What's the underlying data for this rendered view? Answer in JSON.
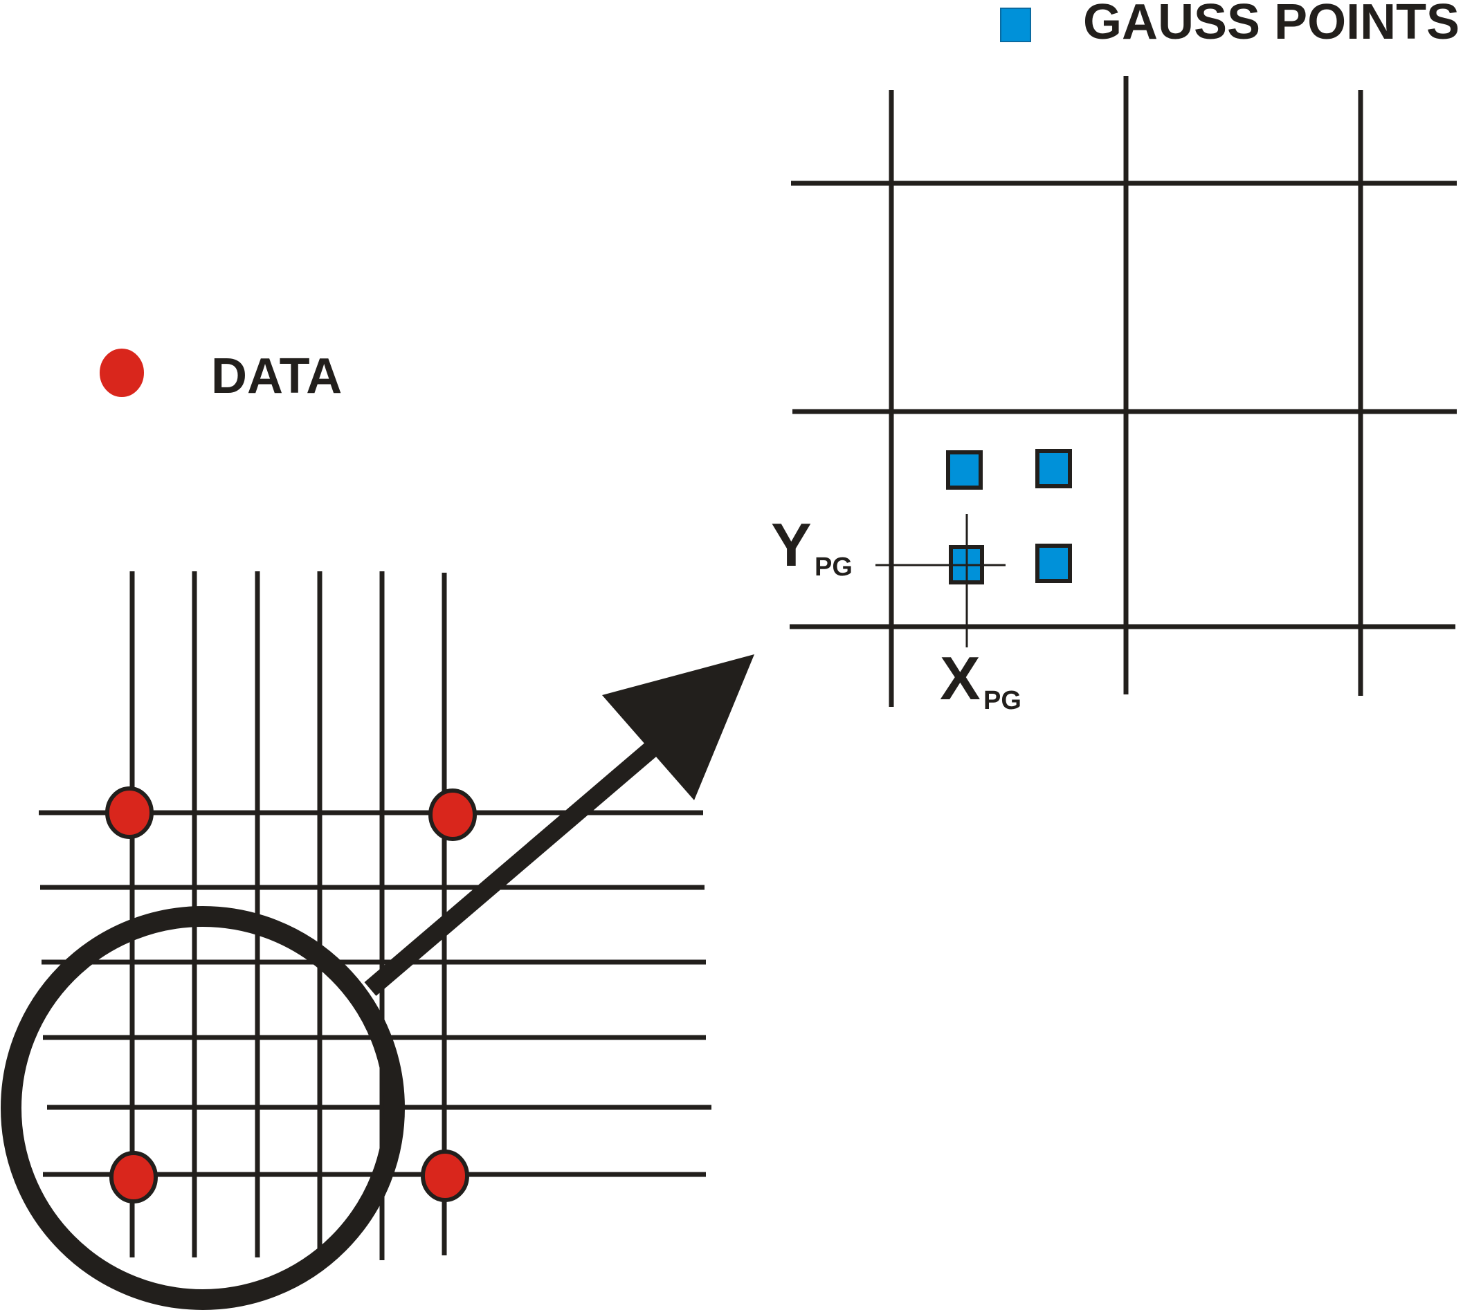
{
  "legend": {
    "data_label": "DATA",
    "gauss_label": "GAUSS POINTS"
  },
  "axes": {
    "y_main": "Y",
    "y_sub": "PG",
    "x_main": "X",
    "x_sub": "PG"
  },
  "colors": {
    "line": "#221f1c",
    "data_point": "#d9261c",
    "gauss_point": "#0091d9",
    "background": "#ffffff"
  }
}
